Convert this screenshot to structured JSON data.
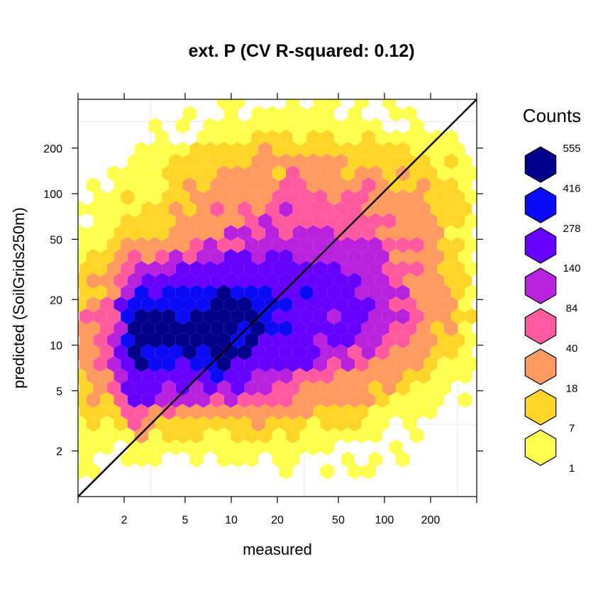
{
  "chart_data": {
    "type": "heatmap",
    "subtype": "hexbin",
    "title": "ext. P  (CV R-squared: 0.12)",
    "xlabel": "measured",
    "ylabel": "predicted (SoilGrids250m)",
    "x_scale": "log",
    "y_scale": "log",
    "xlim": [
      1,
      400
    ],
    "ylim": [
      1.0,
      420
    ],
    "x_ticks": [
      2,
      5,
      10,
      20,
      50,
      100,
      200
    ],
    "x_tick_labels": [
      "2",
      "5",
      "10",
      "20",
      "50",
      "100",
      "200"
    ],
    "y_ticks": [
      2,
      5,
      10,
      20,
      50,
      100,
      200
    ],
    "y_tick_labels": [
      "2",
      "5",
      "10",
      "20",
      "50",
      "100",
      "200"
    ],
    "reference_line": "1:1",
    "legend": {
      "title": "Counts",
      "position": "right",
      "breaks": [
        "555",
        "416",
        "278",
        "140",
        "84",
        "40",
        "18",
        "7",
        "1"
      ],
      "colors": [
        "#00008B",
        "#0A0AF5",
        "#6600FF",
        "#B822DD",
        "#FF5AA0",
        "#FF9A60",
        "#FFD52A",
        "#FFFF50"
      ]
    },
    "density_model": {
      "description": "count classes of hex cells estimated from the colour pattern",
      "classes": [
        "1-7",
        "7-18",
        "18-40",
        "40-84",
        "84-140",
        "140-278",
        "278-416",
        "416-555"
      ]
    }
  }
}
